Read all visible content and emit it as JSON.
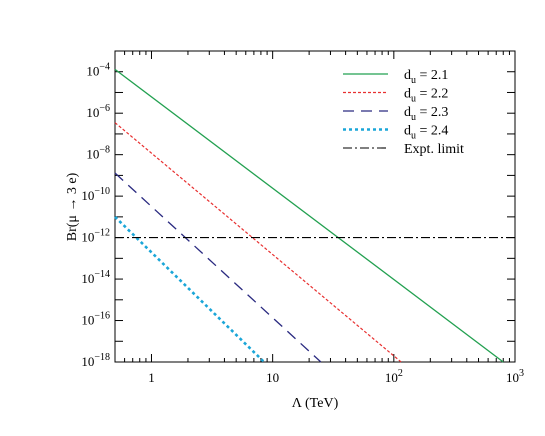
{
  "chart_data": {
    "type": "line",
    "xlabel": "Λ (TeV)",
    "ylabel": "Br(μ → 3 e)",
    "x_scale": "log",
    "y_scale": "log",
    "xlim": [
      0.5,
      1000
    ],
    "ylim": [
      1e-18,
      0.001
    ],
    "x_ticks": [
      {
        "value": 1,
        "label": "1"
      },
      {
        "value": 10,
        "label": "10"
      },
      {
        "value": 100,
        "label": "10",
        "sup": "2"
      },
      {
        "value": 1000,
        "label": "10",
        "sup": "3"
      }
    ],
    "y_ticks": [
      {
        "value": 0.0001,
        "label": "10",
        "sup": "−4"
      },
      {
        "value": 1e-06,
        "label": "10",
        "sup": "−6"
      },
      {
        "value": 1e-08,
        "label": "10",
        "sup": "−8"
      },
      {
        "value": 1e-10,
        "label": "10",
        "sup": "−10"
      },
      {
        "value": 1e-12,
        "label": "10",
        "sup": "−12"
      },
      {
        "value": 1e-14,
        "label": "10",
        "sup": "−14"
      },
      {
        "value": 1e-16,
        "label": "10",
        "sup": "−16"
      },
      {
        "value": 1e-18,
        "label": "10",
        "sup": "−18"
      }
    ],
    "grid": false,
    "legend_position": "top-right",
    "series": [
      {
        "name": "d",
        "sub": "u",
        "suffix": " = 2.1",
        "color": "#22a050",
        "style": "solid",
        "x": [
          0.5,
          800
        ],
        "y": [
          0.00013,
          1e-18
        ]
      },
      {
        "name": "d",
        "sub": "u",
        "suffix": " = 2.2",
        "color": "#e83030",
        "style": "dotted-dash",
        "x": [
          0.5,
          115
        ],
        "y": [
          3.5e-07,
          1e-18
        ]
      },
      {
        "name": "d",
        "sub": "u",
        "suffix": " = 2.3",
        "color": "#2a2a80",
        "style": "long-dash",
        "x": [
          0.5,
          25
        ],
        "y": [
          1.3e-09,
          1e-18
        ]
      },
      {
        "name": "d",
        "sub": "u",
        "suffix": " = 2.4",
        "color": "#1aa6d8",
        "style": "dotted",
        "x": [
          0.5,
          8.5
        ],
        "y": [
          1e-11,
          1e-18
        ]
      },
      {
        "name": "Expt. limit",
        "color": "#000000",
        "style": "dash-dot",
        "x": [
          0.5,
          1000
        ],
        "y": [
          1e-12,
          1e-12
        ]
      }
    ]
  }
}
